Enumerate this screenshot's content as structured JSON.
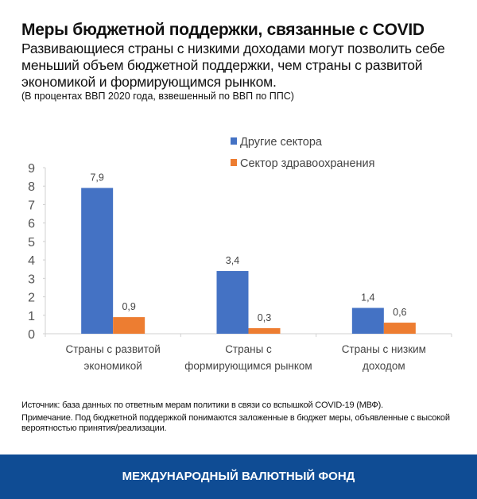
{
  "header": {
    "title": "Меры бюджетной поддержки, связанные с COVID",
    "subtitle": "Развивающиеся страны с низкими доходами могут позволить себе меньший объем бюджетной поддержки, чем страны с развитой экономикой и формирующимся рынком.",
    "units_note": "(В процентах ВВП 2020 года, взвешенный по ВВП по ППС)"
  },
  "chart_data": {
    "type": "bar",
    "categories": [
      [
        "Страны с развитой",
        "экономикой"
      ],
      [
        "Страны с",
        "формирующимся рынком"
      ],
      [
        "Страны с низким",
        "доходом"
      ]
    ],
    "series": [
      {
        "name": "Другие сектора",
        "values": [
          7.9,
          3.4,
          1.4
        ],
        "labels": [
          "7,9",
          "3,4",
          "1,4"
        ],
        "color": "#4472c4"
      },
      {
        "name": "Сектор здравоохранения",
        "values": [
          0.9,
          0.3,
          0.6
        ],
        "labels": [
          "0,9",
          "0,3",
          "0,6"
        ],
        "color": "#ed7d31"
      }
    ],
    "ylim": [
      0,
      9
    ],
    "yticks": [
      "0",
      "1",
      "2",
      "3",
      "4",
      "5",
      "6",
      "7",
      "8",
      "9"
    ],
    "grid": false,
    "legend_position": "top-right"
  },
  "source": {
    "source_line": "Источник: база данных по ответным мерам политики в связи со вспышкой COVID-19 (МВФ).",
    "note_line": "Примечание. Под бюджетной поддержкой понимаются заложенные в бюджет меры, объявленные с высокой вероятностью принятия/реализации."
  },
  "footer": {
    "org": "МЕЖДУНАРОДНЫЙ ВАЛЮТНЫЙ ФОНД",
    "color": "#0f4c94"
  }
}
